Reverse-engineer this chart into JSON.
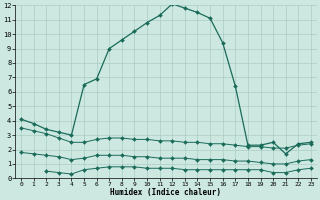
{
  "xlabel": "Humidex (Indice chaleur)",
  "xlim": [
    -0.5,
    23.5
  ],
  "ylim": [
    0,
    12
  ],
  "xticks": [
    0,
    1,
    2,
    3,
    4,
    5,
    6,
    7,
    8,
    9,
    10,
    11,
    12,
    13,
    14,
    15,
    16,
    17,
    18,
    19,
    20,
    21,
    22,
    23
  ],
  "yticks": [
    0,
    1,
    2,
    3,
    4,
    5,
    6,
    7,
    8,
    9,
    10,
    11,
    12
  ],
  "bg_color": "#cce8e0",
  "line_color": "#1a6b5a",
  "grid_color": "#aaccc4",
  "line1_x": [
    0,
    1,
    2,
    3,
    4,
    5,
    6,
    7,
    8,
    9,
    10,
    11,
    12,
    13,
    14,
    15,
    16,
    17,
    18,
    19,
    20,
    21,
    22,
    23
  ],
  "line1_y": [
    4.1,
    3.8,
    3.4,
    3.2,
    3.0,
    6.5,
    6.9,
    9.0,
    9.6,
    10.2,
    10.8,
    11.3,
    12.1,
    11.8,
    11.5,
    11.1,
    9.4,
    6.4,
    2.3,
    2.3,
    2.5,
    1.7,
    2.4,
    2.5
  ],
  "line2_x": [
    0,
    1,
    2,
    3,
    4,
    5,
    6,
    7,
    8,
    9,
    10,
    11,
    12,
    13,
    14,
    15,
    16,
    17,
    18,
    19,
    20,
    21,
    22,
    23
  ],
  "line2_y": [
    3.5,
    3.3,
    3.1,
    2.8,
    2.5,
    2.5,
    2.7,
    2.8,
    2.8,
    2.7,
    2.7,
    2.6,
    2.6,
    2.5,
    2.5,
    2.4,
    2.4,
    2.3,
    2.2,
    2.2,
    2.1,
    2.1,
    2.3,
    2.4
  ],
  "line3_x": [
    0,
    1,
    2,
    3,
    4,
    5,
    6,
    7,
    8,
    9,
    10,
    11,
    12,
    13,
    14,
    15,
    16,
    17,
    18,
    19,
    20,
    21,
    22,
    23
  ],
  "line3_y": [
    1.8,
    1.7,
    1.6,
    1.5,
    1.3,
    1.4,
    1.6,
    1.6,
    1.6,
    1.5,
    1.5,
    1.4,
    1.4,
    1.4,
    1.3,
    1.3,
    1.3,
    1.2,
    1.2,
    1.1,
    1.0,
    1.0,
    1.2,
    1.3
  ],
  "line4_x": [
    2,
    3,
    4,
    5,
    6,
    7,
    8,
    9,
    10,
    11,
    12,
    13,
    14,
    15,
    16,
    17,
    18,
    19,
    20,
    21,
    22,
    23
  ],
  "line4_y": [
    0.5,
    0.4,
    0.3,
    0.6,
    0.7,
    0.8,
    0.8,
    0.8,
    0.7,
    0.7,
    0.7,
    0.6,
    0.6,
    0.6,
    0.6,
    0.6,
    0.6,
    0.6,
    0.4,
    0.4,
    0.6,
    0.7
  ]
}
